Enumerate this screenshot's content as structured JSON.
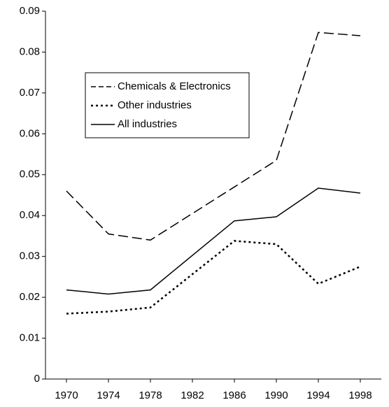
{
  "chart_data": {
    "type": "line",
    "x": [
      1970,
      1974,
      1978,
      1986,
      1990,
      1994,
      1998
    ],
    "series": [
      {
        "name": "Chemicals & Electronics",
        "color": "#000000",
        "style": "dashed",
        "values": [
          0.046,
          0.0355,
          0.034,
          0.047,
          0.0535,
          0.0848,
          0.084
        ]
      },
      {
        "name": "Other industries",
        "color": "#000000",
        "style": "dotted",
        "values": [
          0.016,
          0.0165,
          0.0175,
          0.0338,
          0.033,
          0.0233,
          0.0275
        ]
      },
      {
        "name": "All industries",
        "color": "#000000",
        "style": "solid",
        "values": [
          0.0218,
          0.0208,
          0.0218,
          0.0387,
          0.0397,
          0.0467,
          0.0455
        ]
      }
    ],
    "xlim": [
      1968,
      2000
    ],
    "xticks": [
      1970,
      1974,
      1978,
      1982,
      1986,
      1990,
      1994,
      1998
    ],
    "ylim": [
      0,
      0.09
    ],
    "yticks": [
      0,
      0.01,
      0.02,
      0.03,
      0.04,
      0.05,
      0.06,
      0.07,
      0.08,
      0.09
    ],
    "grid": false,
    "legend": "upper-left"
  }
}
